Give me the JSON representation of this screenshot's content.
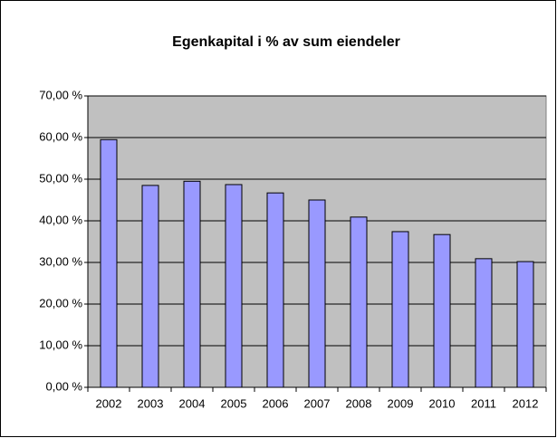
{
  "chart_data": {
    "type": "bar",
    "title": "Egenkapital i % av sum eiendeler",
    "categories": [
      "2002",
      "2003",
      "2004",
      "2005",
      "2006",
      "2007",
      "2008",
      "2009",
      "2010",
      "2011",
      "2012"
    ],
    "values": [
      59.5,
      48.5,
      49.5,
      48.7,
      46.7,
      45.0,
      40.9,
      37.4,
      36.7,
      30.9,
      30.2
    ],
    "color": "#9999ff",
    "ylim": [
      0,
      70
    ],
    "yticks": [
      {
        "value": 0,
        "label": "0,00 %"
      },
      {
        "value": 10,
        "label": "10,00 %"
      },
      {
        "value": 20,
        "label": "20,00 %"
      },
      {
        "value": 30,
        "label": "30,00 %"
      },
      {
        "value": 40,
        "label": "40,00 %"
      },
      {
        "value": 50,
        "label": "50,00 %"
      },
      {
        "value": 60,
        "label": "60,00 %"
      },
      {
        "value": 70,
        "label": "70,00 %"
      }
    ],
    "grid": true
  }
}
